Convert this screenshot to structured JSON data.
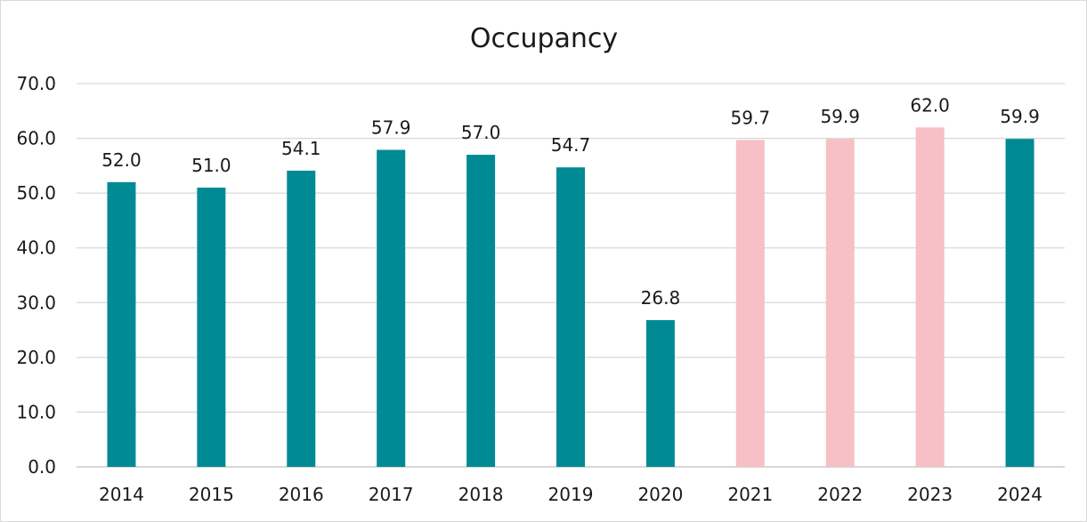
{
  "chart_data": {
    "type": "bar",
    "title": "Occupancy",
    "xlabel": "",
    "ylabel": "",
    "categories": [
      "2014",
      "2015",
      "2016",
      "2017",
      "2018",
      "2019",
      "2020",
      "2021",
      "2022",
      "2023",
      "2024"
    ],
    "values": [
      52.0,
      51.0,
      54.1,
      57.9,
      57.0,
      54.7,
      26.8,
      59.7,
      59.9,
      62.0,
      59.9
    ],
    "data_labels": [
      "52.0",
      "51.0",
      "54.1",
      "57.9",
      "57.0",
      "54.7",
      "26.8",
      "59.7",
      "59.9",
      "62.0",
      "59.9"
    ],
    "bar_colors": [
      "#008b94",
      "#008b94",
      "#008b94",
      "#008b94",
      "#008b94",
      "#008b94",
      "#008b94",
      "#f7bfc6",
      "#f7bfc6",
      "#f7bfc6",
      "#008b94"
    ],
    "ylim": [
      0,
      70
    ],
    "yticks": [
      "0.0",
      "10.0",
      "20.0",
      "30.0",
      "40.0",
      "50.0",
      "60.0",
      "70.0"
    ],
    "grid": true,
    "legend": "none"
  }
}
